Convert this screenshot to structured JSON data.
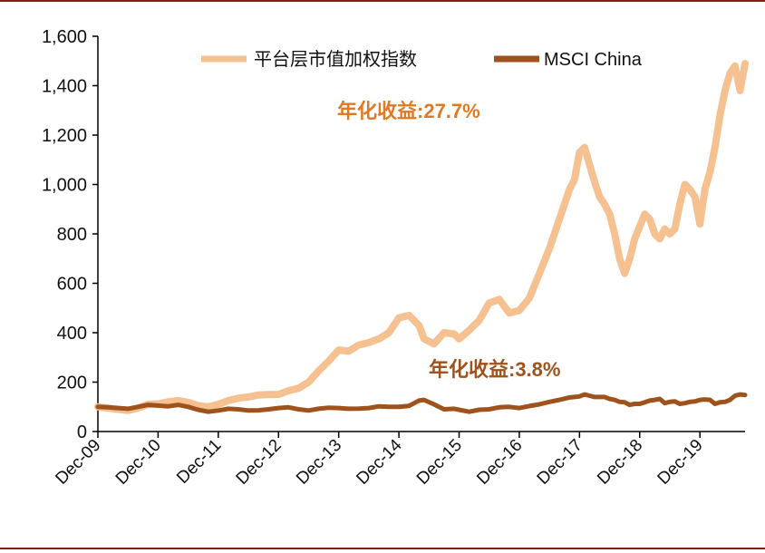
{
  "colors": {
    "series1": "#f6c191",
    "series2": "#a0521c",
    "annotation1": "#e07a22",
    "annotation2": "#a0521c",
    "rule": "#8b1a1a",
    "axis": "#000000"
  },
  "chart_data": {
    "type": "line",
    "legend_position": "top",
    "ylim": [
      0,
      1600
    ],
    "yticks": [
      0,
      200,
      400,
      600,
      800,
      1000,
      1200,
      1400,
      1600
    ],
    "ytick_labels": [
      "0",
      "200",
      "400",
      "600",
      "800",
      "1,000",
      "1,200",
      "1,400",
      "1,600"
    ],
    "x_range": [
      "Dec-09",
      "Sep-20"
    ],
    "xticks": [
      "Dec-09",
      "Dec-10",
      "Dec-11",
      "Dec-12",
      "Dec-13",
      "Dec-14",
      "Dec-15",
      "Dec-16",
      "Dec-17",
      "Dec-18",
      "Dec-19"
    ],
    "series": [
      {
        "name": "平台层市值加权指数",
        "points": [
          [
            "Dec-09",
            100
          ],
          [
            "Feb-10",
            95
          ],
          [
            "Apr-10",
            90
          ],
          [
            "Jun-10",
            85
          ],
          [
            "Aug-10",
            95
          ],
          [
            "Oct-10",
            110
          ],
          [
            "Dec-10",
            112
          ],
          [
            "Feb-11",
            120
          ],
          [
            "Apr-11",
            125
          ],
          [
            "Jun-11",
            118
          ],
          [
            "Aug-11",
            105
          ],
          [
            "Oct-11",
            100
          ],
          [
            "Dec-11",
            110
          ],
          [
            "Feb-12",
            125
          ],
          [
            "Apr-12",
            135
          ],
          [
            "Jun-12",
            140
          ],
          [
            "Aug-12",
            148
          ],
          [
            "Oct-12",
            150
          ],
          [
            "Dec-12",
            150
          ],
          [
            "Feb-13",
            165
          ],
          [
            "Apr-13",
            175
          ],
          [
            "Jun-13",
            200
          ],
          [
            "Aug-13",
            245
          ],
          [
            "Oct-13",
            285
          ],
          [
            "Dec-13",
            330
          ],
          [
            "Feb-14",
            325
          ],
          [
            "Apr-14",
            350
          ],
          [
            "Jun-14",
            360
          ],
          [
            "Aug-14",
            375
          ],
          [
            "Oct-14",
            400
          ],
          [
            "Dec-14",
            460
          ],
          [
            "Feb-15",
            470
          ],
          [
            "Apr-15",
            430
          ],
          [
            "May-15",
            375
          ],
          [
            "Jul-15",
            355
          ],
          [
            "Sep-15",
            400
          ],
          [
            "Nov-15",
            395
          ],
          [
            "Dec-15",
            375
          ],
          [
            "Feb-16",
            410
          ],
          [
            "Apr-16",
            450
          ],
          [
            "Jun-16",
            520
          ],
          [
            "Aug-16",
            535
          ],
          [
            "Oct-16",
            480
          ],
          [
            "Dec-16",
            490
          ],
          [
            "Feb-17",
            540
          ],
          [
            "Apr-17",
            640
          ],
          [
            "Jun-17",
            740
          ],
          [
            "Aug-17",
            860
          ],
          [
            "Oct-17",
            980
          ],
          [
            "Nov-17",
            1020
          ],
          [
            "Dec-17",
            1130
          ],
          [
            "Jan-18",
            1150
          ],
          [
            "Feb-18",
            1080
          ],
          [
            "Mar-18",
            1010
          ],
          [
            "Apr-18",
            950
          ],
          [
            "May-18",
            920
          ],
          [
            "Jun-18",
            880
          ],
          [
            "Jul-18",
            800
          ],
          [
            "Aug-18",
            700
          ],
          [
            "Sep-18",
            640
          ],
          [
            "Oct-18",
            700
          ],
          [
            "Nov-18",
            780
          ],
          [
            "Dec-18",
            830
          ],
          [
            "Jan-19",
            880
          ],
          [
            "Feb-19",
            860
          ],
          [
            "Mar-19",
            800
          ],
          [
            "Apr-19",
            780
          ],
          [
            "May-19",
            820
          ],
          [
            "Jun-19",
            800
          ],
          [
            "Jul-19",
            820
          ],
          [
            "Aug-19",
            920
          ],
          [
            "Sep-19",
            1000
          ],
          [
            "Oct-19",
            980
          ],
          [
            "Nov-19",
            950
          ],
          [
            "Dec-19",
            840
          ],
          [
            "Jan-20",
            980
          ],
          [
            "Feb-20",
            1050
          ],
          [
            "Mar-20",
            1150
          ],
          [
            "Apr-20",
            1280
          ],
          [
            "May-20",
            1380
          ],
          [
            "Jun-20",
            1450
          ],
          [
            "Jul-20",
            1480
          ],
          [
            "Aug-20",
            1380
          ],
          [
            "Sep-20",
            1490
          ]
        ]
      },
      {
        "name": "MSCI China",
        "points": [
          [
            "Dec-09",
            100
          ],
          [
            "Feb-10",
            98
          ],
          [
            "Apr-10",
            95
          ],
          [
            "Jun-10",
            92
          ],
          [
            "Aug-10",
            100
          ],
          [
            "Oct-10",
            108
          ],
          [
            "Dec-10",
            105
          ],
          [
            "Feb-11",
            102
          ],
          [
            "Apr-11",
            108
          ],
          [
            "Jun-11",
            100
          ],
          [
            "Aug-11",
            88
          ],
          [
            "Oct-11",
            80
          ],
          [
            "Dec-11",
            85
          ],
          [
            "Feb-12",
            92
          ],
          [
            "Apr-12",
            90
          ],
          [
            "Jun-12",
            85
          ],
          [
            "Aug-12",
            86
          ],
          [
            "Oct-12",
            90
          ],
          [
            "Dec-12",
            95
          ],
          [
            "Feb-13",
            98
          ],
          [
            "Apr-13",
            90
          ],
          [
            "Jun-13",
            85
          ],
          [
            "Aug-13",
            92
          ],
          [
            "Oct-13",
            96
          ],
          [
            "Dec-13",
            95
          ],
          [
            "Feb-14",
            92
          ],
          [
            "Apr-14",
            93
          ],
          [
            "Jun-14",
            95
          ],
          [
            "Aug-14",
            102
          ],
          [
            "Oct-14",
            100
          ],
          [
            "Dec-14",
            100
          ],
          [
            "Feb-15",
            104
          ],
          [
            "Apr-15",
            125
          ],
          [
            "May-15",
            128
          ],
          [
            "Jul-15",
            110
          ],
          [
            "Sep-15",
            90
          ],
          [
            "Nov-15",
            92
          ],
          [
            "Dec-15",
            88
          ],
          [
            "Feb-16",
            80
          ],
          [
            "Apr-16",
            88
          ],
          [
            "Jun-16",
            90
          ],
          [
            "Aug-16",
            98
          ],
          [
            "Oct-16",
            100
          ],
          [
            "Dec-16",
            95
          ],
          [
            "Feb-17",
            103
          ],
          [
            "Apr-17",
            110
          ],
          [
            "Jun-17",
            120
          ],
          [
            "Aug-17",
            128
          ],
          [
            "Oct-17",
            138
          ],
          [
            "Nov-17",
            140
          ],
          [
            "Dec-17",
            142
          ],
          [
            "Jan-18",
            150
          ],
          [
            "Feb-18",
            145
          ],
          [
            "Mar-18",
            140
          ],
          [
            "Apr-18",
            140
          ],
          [
            "May-18",
            140
          ],
          [
            "Jun-18",
            132
          ],
          [
            "Jul-18",
            128
          ],
          [
            "Aug-18",
            120
          ],
          [
            "Sep-18",
            118
          ],
          [
            "Oct-18",
            108
          ],
          [
            "Nov-18",
            112
          ],
          [
            "Dec-18",
            112
          ],
          [
            "Jan-19",
            118
          ],
          [
            "Feb-19",
            125
          ],
          [
            "Mar-19",
            128
          ],
          [
            "Apr-19",
            132
          ],
          [
            "May-19",
            115
          ],
          [
            "Jun-19",
            120
          ],
          [
            "Jul-19",
            122
          ],
          [
            "Aug-19",
            112
          ],
          [
            "Sep-19",
            115
          ],
          [
            "Oct-19",
            120
          ],
          [
            "Nov-19",
            122
          ],
          [
            "Dec-19",
            128
          ],
          [
            "Jan-20",
            130
          ],
          [
            "Feb-20",
            128
          ],
          [
            "Mar-20",
            112
          ],
          [
            "Apr-20",
            118
          ],
          [
            "May-20",
            120
          ],
          [
            "Jun-20",
            128
          ],
          [
            "Jul-20",
            145
          ],
          [
            "Aug-20",
            150
          ],
          [
            "Sep-20",
            148
          ]
        ]
      }
    ],
    "annotations": [
      {
        "text_cn": "年化收益:",
        "text_num": "27.7%",
        "series": 0
      },
      {
        "text_cn": "年化收益:",
        "text_num": "3.8%",
        "series": 1
      }
    ]
  }
}
